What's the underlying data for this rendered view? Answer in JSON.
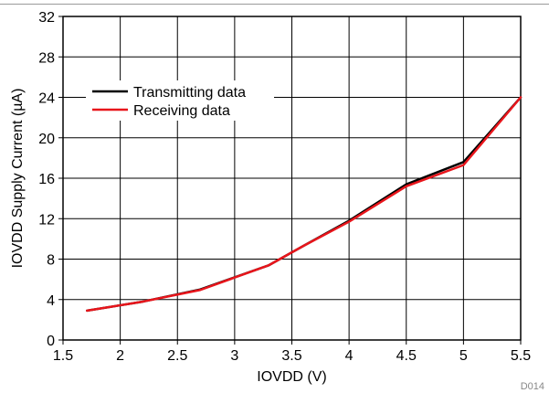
{
  "chart_data": {
    "type": "line",
    "title": "",
    "xlabel": "IOVDD (V)",
    "ylabel": "IOVDD Supply Current (µA)",
    "xlim": [
      1.5,
      5.5
    ],
    "ylim": [
      0,
      32
    ],
    "xticks": [
      1.5,
      2,
      2.5,
      3,
      3.5,
      4,
      4.5,
      5,
      5.5
    ],
    "xtick_labels": [
      "1.5",
      "2",
      "2.5",
      "3",
      "3.5",
      "4",
      "4.5",
      "5",
      "5.5"
    ],
    "yticks": [
      0,
      4,
      8,
      12,
      16,
      20,
      24,
      28,
      32
    ],
    "ytick_labels": [
      "0",
      "4",
      "8",
      "12",
      "16",
      "20",
      "24",
      "28",
      "32"
    ],
    "grid": true,
    "legend_position": "upper-left",
    "series": [
      {
        "name": "Transmitting data",
        "color": "#000000",
        "x": [
          1.71,
          2.2,
          2.7,
          3.3,
          3.6,
          4.0,
          4.5,
          5.0,
          5.5
        ],
        "y": [
          2.9,
          3.8,
          5.0,
          7.4,
          9.3,
          11.8,
          15.4,
          17.6,
          24.0
        ]
      },
      {
        "name": "Receiving data",
        "color": "#e8151b",
        "x": [
          1.71,
          2.2,
          2.7,
          3.3,
          3.6,
          4.0,
          4.5,
          5.0,
          5.5
        ],
        "y": [
          2.9,
          3.8,
          4.95,
          7.4,
          9.3,
          11.7,
          15.2,
          17.3,
          24.0
        ]
      }
    ],
    "figure_id": "D014"
  }
}
